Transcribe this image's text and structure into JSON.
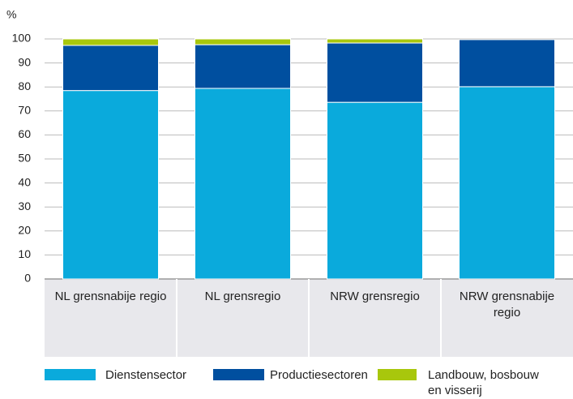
{
  "chart_data": {
    "type": "stacked_bar",
    "y_label": "%",
    "categories": [
      "NL grensnabije regio",
      "NL grensregio",
      "NRW grensregio",
      "NRW grensnabije regio"
    ],
    "series": [
      {
        "name": "Dienstensector",
        "color": "#0aaadc",
        "values": [
          78.5,
          79.4,
          73.6,
          80.1
        ]
      },
      {
        "name": "Productiesectoren",
        "color": "#004f9f",
        "values": [
          18.8,
          18.2,
          24.7,
          19.6
        ]
      },
      {
        "name": "Landbouw, bosbouw en visserij",
        "color": "#a8c70c",
        "values": [
          2.7,
          2.4,
          1.7,
          0
        ]
      }
    ],
    "ylim": [
      0,
      100
    ],
    "yticks": [
      0,
      10,
      20,
      30,
      40,
      50,
      60,
      70,
      80,
      90,
      100
    ],
    "grid": true
  }
}
